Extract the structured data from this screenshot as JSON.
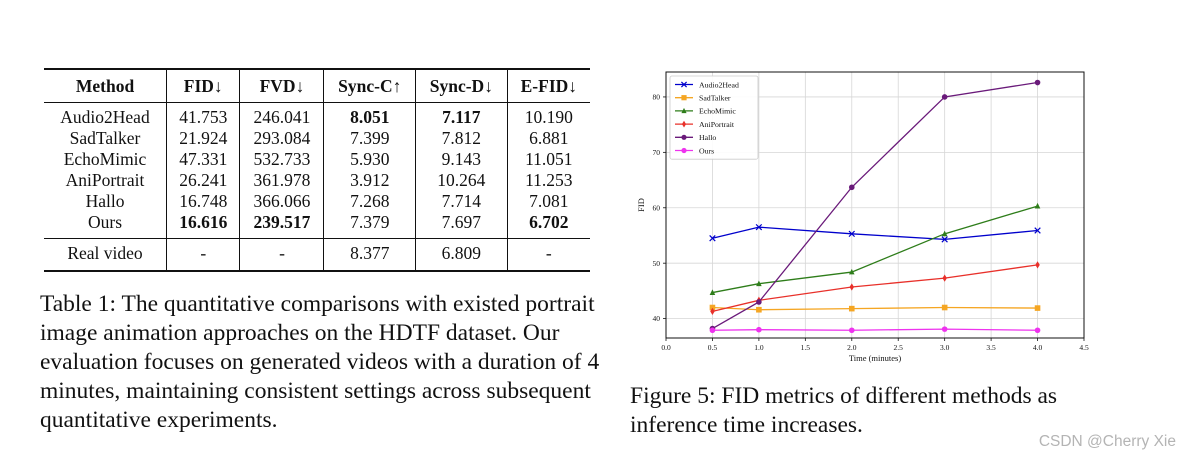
{
  "table": {
    "headers": [
      "Method",
      "FID↓",
      "FVD↓",
      "Sync-C↑",
      "Sync-D↓",
      "E-FID↓"
    ],
    "rows": [
      {
        "cells": [
          "Audio2Head",
          "41.753",
          "246.041",
          "8.051",
          "7.117",
          "10.190"
        ],
        "bold": [
          false,
          false,
          false,
          true,
          true,
          false
        ]
      },
      {
        "cells": [
          "SadTalker",
          "21.924",
          "293.084",
          "7.399",
          "7.812",
          "6.881"
        ],
        "bold": [
          false,
          false,
          false,
          false,
          false,
          false
        ]
      },
      {
        "cells": [
          "EchoMimic",
          "47.331",
          "532.733",
          "5.930",
          "9.143",
          "11.051"
        ],
        "bold": [
          false,
          false,
          false,
          false,
          false,
          false
        ]
      },
      {
        "cells": [
          "AniPortrait",
          "26.241",
          "361.978",
          "3.912",
          "10.264",
          "11.253"
        ],
        "bold": [
          false,
          false,
          false,
          false,
          false,
          false
        ]
      },
      {
        "cells": [
          "Hallo",
          "16.748",
          "366.066",
          "7.268",
          "7.714",
          "7.081"
        ],
        "bold": [
          false,
          false,
          false,
          false,
          false,
          false
        ]
      },
      {
        "cells": [
          "Ours",
          "16.616",
          "239.517",
          "7.379",
          "7.697",
          "6.702"
        ],
        "bold": [
          false,
          true,
          true,
          false,
          false,
          true
        ]
      }
    ],
    "real_row": [
      "Real video",
      "-",
      "-",
      "8.377",
      "6.809",
      "-"
    ]
  },
  "table_caption": "Table 1: The quantitative comparisons with existed portrait image animation approaches on the HDTF dataset. Our evaluation focuses on generated videos with a duration of 4 minutes, maintaining consistent settings across subsequent quantitative experiments.",
  "figure_caption": "Figure 5: FID metrics of different methods as inference time increases.",
  "watermark": "CSDN @Cherry Xie",
  "chart_data": {
    "type": "line",
    "title": "",
    "xlabel": "Time (minutes)",
    "ylabel": "FID",
    "xlim": [
      0.0,
      4.5
    ],
    "ylim": [
      36.5,
      84.5
    ],
    "xticks": [
      0.0,
      0.5,
      1.0,
      1.5,
      2.0,
      2.5,
      3.0,
      3.5,
      4.0,
      4.5
    ],
    "xtick_labels": [
      "0.0",
      "0.5",
      "1.0",
      "1.5",
      "2.0",
      "2.5",
      "3.0",
      "3.5",
      "4.0",
      "4.5"
    ],
    "yticks": [
      40,
      50,
      60,
      70,
      80
    ],
    "ytick_labels": [
      "40",
      "50",
      "60",
      "70",
      "80"
    ],
    "grid": true,
    "legend_position": "top-left",
    "x": [
      0.5,
      1.0,
      2.0,
      3.0,
      4.0
    ],
    "series": [
      {
        "name": "Audio2Head",
        "color": "#0000cc",
        "marker": "x",
        "values": [
          54.5,
          56.5,
          55.3,
          54.3,
          55.9
        ]
      },
      {
        "name": "SadTalker",
        "color": "#f5a623",
        "marker": "s",
        "values": [
          42.0,
          41.6,
          41.8,
          42.0,
          41.9
        ]
      },
      {
        "name": "EchoMimic",
        "color": "#2e7d1a",
        "marker": "^",
        "values": [
          44.7,
          46.3,
          48.4,
          55.3,
          60.3
        ]
      },
      {
        "name": "AniPortrait",
        "color": "#e8302a",
        "marker": "d",
        "values": [
          41.3,
          43.3,
          45.7,
          47.3,
          49.7
        ]
      },
      {
        "name": "Hallo",
        "color": "#6a1a7a",
        "marker": "o",
        "values": [
          38.2,
          43.0,
          63.7,
          80.0,
          82.6
        ]
      },
      {
        "name": "Ours",
        "color": "#ee33ee",
        "marker": "o",
        "values": [
          37.9,
          38.0,
          37.9,
          38.1,
          37.9
        ]
      }
    ]
  }
}
